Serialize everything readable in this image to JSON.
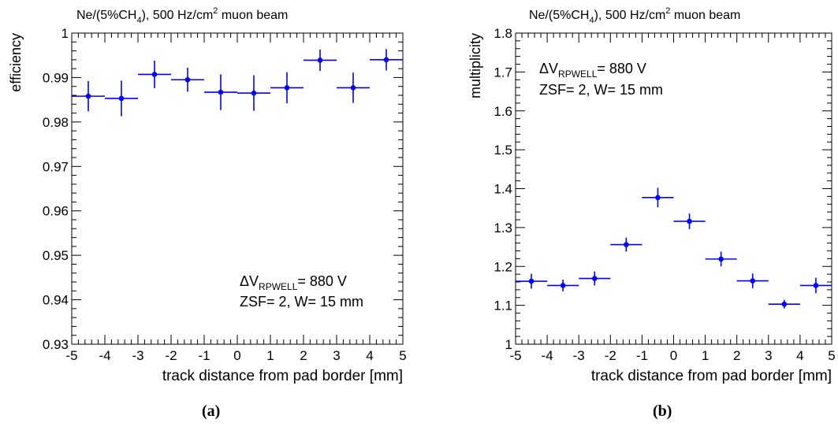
{
  "chart_data": [
    {
      "type": "scatter",
      "panel_label": "(a)",
      "title": {
        "pre": "Ne/(5%CH",
        "sub": "4",
        "mid": "), 500 Hz/cm",
        "sup": "2",
        "post": " muon beam"
      },
      "xlabel": "track distance from pad border [mm]",
      "ylabel": "efficiency",
      "xlim": [
        -5,
        5
      ],
      "ylim": [
        0.93,
        1.0
      ],
      "xticks": [
        -5,
        -4,
        -3,
        -2,
        -1,
        0,
        1,
        2,
        3,
        4,
        5
      ],
      "yticks": [
        "0.93",
        "0.94",
        "0.95",
        "0.96",
        "0.97",
        "0.98",
        "0.99",
        "1"
      ],
      "ytick_values": [
        0.93,
        0.94,
        0.95,
        0.96,
        0.97,
        0.98,
        0.99,
        1.0
      ],
      "annotation": {
        "dv_pre": "ΔV",
        "dv_sub": "RPWELL",
        "dv_post": "= 880 V",
        "line2": "ZSF= 2, W= 15 mm",
        "placement": "bottom-right"
      },
      "color": "#0000ff",
      "x": [
        -4.5,
        -3.5,
        -2.5,
        -1.5,
        -0.5,
        0.5,
        1.5,
        2.5,
        3.5,
        4.5
      ],
      "x_err": 0.5,
      "values": [
        0.9858,
        0.9853,
        0.9907,
        0.9895,
        0.9867,
        0.9865,
        0.9877,
        0.9939,
        0.9877,
        0.994
      ],
      "y_err": [
        0.0034,
        0.004,
        0.0031,
        0.0027,
        0.004,
        0.004,
        0.0035,
        0.0024,
        0.0034,
        0.0024
      ]
    },
    {
      "type": "scatter",
      "panel_label": "(b)",
      "title": {
        "pre": "Ne/(5%CH",
        "sub": "4",
        "mid": "), 500 Hz/cm",
        "sup": "2",
        "post": " muon beam"
      },
      "xlabel": "track distance from pad border [mm]",
      "ylabel": "multiplicity",
      "xlim": [
        -5,
        5
      ],
      "ylim": [
        1.0,
        1.8
      ],
      "xticks": [
        -5,
        -4,
        -3,
        -2,
        -1,
        0,
        1,
        2,
        3,
        4,
        5
      ],
      "yticks": [
        "1",
        "1.1",
        "1.2",
        "1.3",
        "1.4",
        "1.5",
        "1.6",
        "1.7",
        "1.8"
      ],
      "ytick_values": [
        1.0,
        1.1,
        1.2,
        1.3,
        1.4,
        1.5,
        1.6,
        1.7,
        1.8
      ],
      "annotation": {
        "dv_pre": "ΔV",
        "dv_sub": "RPWELL",
        "dv_post": "= 880 V",
        "line2": "ZSF= 2, W= 15 mm",
        "placement": "top-left"
      },
      "color": "#0000ff",
      "x": [
        -4.5,
        -3.5,
        -2.5,
        -1.5,
        -0.5,
        0.5,
        1.5,
        2.5,
        3.5,
        4.5
      ],
      "x_err": 0.5,
      "values": [
        1.162,
        1.151,
        1.169,
        1.256,
        1.377,
        1.316,
        1.219,
        1.163,
        1.103,
        1.151
      ],
      "y_err": [
        0.019,
        0.015,
        0.018,
        0.018,
        0.025,
        0.02,
        0.019,
        0.019,
        0.011,
        0.02
      ]
    }
  ]
}
